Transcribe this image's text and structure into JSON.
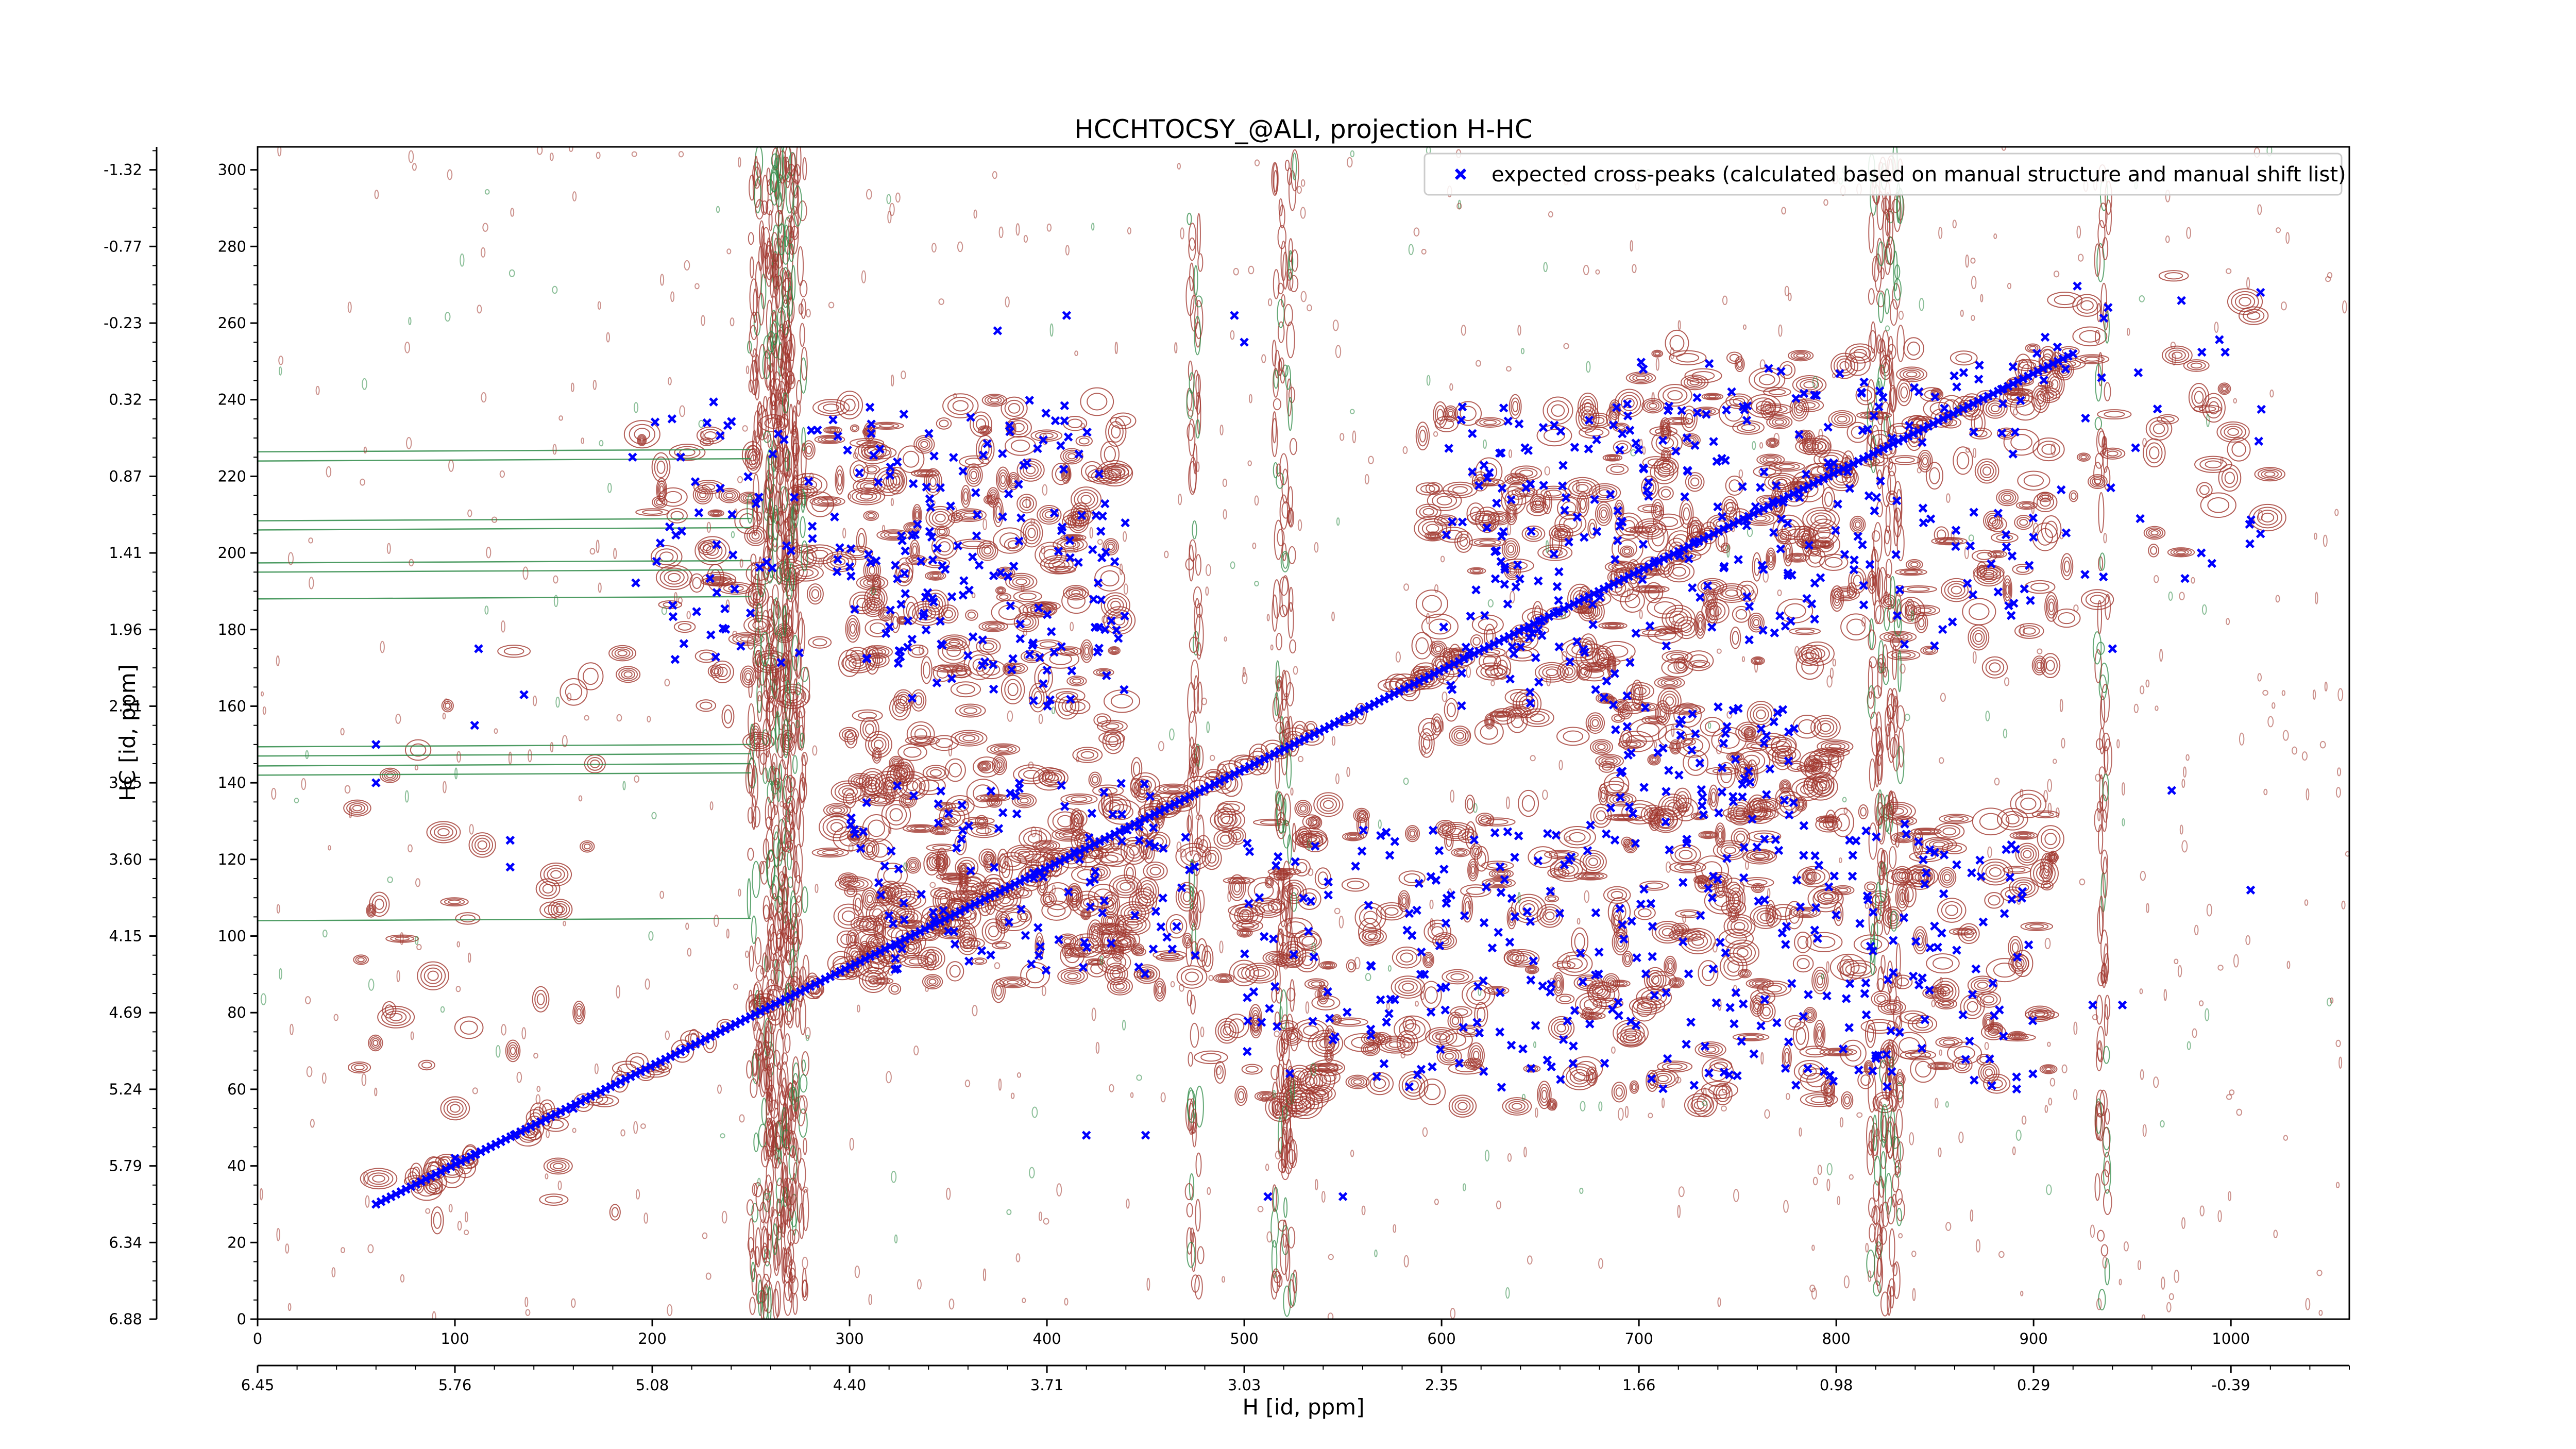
{
  "chart_data": {
    "type": "scatter",
    "title": "HCCHTOCSY_@ALI, projection H-HC",
    "xlabel": "H [id, ppm]",
    "ylabel": "HC [id, ppm]",
    "xlim": [
      0,
      1060
    ],
    "ylim": [
      0,
      306
    ],
    "x_ticks": [
      0,
      100,
      200,
      300,
      400,
      500,
      600,
      700,
      800,
      900,
      1000
    ],
    "y_ticks": [
      0,
      20,
      40,
      60,
      80,
      100,
      120,
      140,
      160,
      180,
      200,
      220,
      240,
      260,
      280,
      300
    ],
    "x_ppm_ticks": [
      "6.45",
      "5.76",
      "5.08",
      "4.40",
      "3.71",
      "3.03",
      "2.35",
      "1.66",
      "0.98",
      "0.29",
      "-0.39"
    ],
    "y_ppm_ticks": [
      "6.88",
      "6.34",
      "5.79",
      "5.24",
      "4.69",
      "4.15",
      "3.60",
      "3.05",
      "2.51",
      "1.96",
      "1.41",
      "0.87",
      "0.32",
      "-0.23",
      "-0.77",
      "-1.32"
    ],
    "grid": false,
    "legend_position": "top-right",
    "series": [
      {
        "name": "expected cross-peaks (calculated based on manual structure and manual shift list)",
        "color": "#0000ff",
        "marker": "x",
        "diagonal": {
          "x_from": 60,
          "x_to": 920,
          "y_from": 30,
          "y_to": 252
        },
        "clusters": [
          {
            "x": [
              300,
              440
            ],
            "y": [
              160,
              240
            ],
            "n": 170
          },
          {
            "x": [
              190,
              300
            ],
            "y": [
              170,
              240
            ],
            "n": 60
          },
          {
            "x": [
              600,
              700
            ],
            "y": [
              160,
              240
            ],
            "n": 120
          },
          {
            "x": [
              700,
              900
            ],
            "y": [
              175,
              250
            ],
            "n": 170
          },
          {
            "x": [
              500,
              900
            ],
            "y": [
              60,
              130
            ],
            "n": 320
          },
          {
            "x": [
              300,
              480
            ],
            "y": [
              90,
              140
            ],
            "n": 110
          },
          {
            "x": [
              680,
              780
            ],
            "y": [
              130,
              160
            ],
            "n": 60
          },
          {
            "x": [
              900,
              1020
            ],
            "y": [
              180,
              270
            ],
            "n": 30
          }
        ],
        "points": [
          {
            "x": 60,
            "y": 30
          },
          {
            "x": 100,
            "y": 42
          },
          {
            "x": 110,
            "y": 43
          },
          {
            "x": 130,
            "y": 48
          },
          {
            "x": 160,
            "y": 55
          },
          {
            "x": 60,
            "y": 140
          },
          {
            "x": 60,
            "y": 150
          },
          {
            "x": 110,
            "y": 155
          },
          {
            "x": 112,
            "y": 175
          },
          {
            "x": 135,
            "y": 163
          },
          {
            "x": 128,
            "y": 125
          },
          {
            "x": 128,
            "y": 118
          },
          {
            "x": 190,
            "y": 225
          },
          {
            "x": 210,
            "y": 235
          },
          {
            "x": 375,
            "y": 258
          },
          {
            "x": 410,
            "y": 262
          },
          {
            "x": 495,
            "y": 262
          },
          {
            "x": 500,
            "y": 255
          },
          {
            "x": 420,
            "y": 48
          },
          {
            "x": 450,
            "y": 48
          },
          {
            "x": 512,
            "y": 32
          },
          {
            "x": 550,
            "y": 32
          },
          {
            "x": 930,
            "y": 82
          },
          {
            "x": 945,
            "y": 82
          },
          {
            "x": 970,
            "y": 138
          },
          {
            "x": 1010,
            "y": 112
          },
          {
            "x": 1015,
            "y": 268
          },
          {
            "x": 1015,
            "y": 205
          },
          {
            "x": 985,
            "y": 200
          },
          {
            "x": 940,
            "y": 175
          }
        ]
      }
    ],
    "contours": [
      {
        "name": "positive",
        "color": "#a0362d"
      },
      {
        "name": "negative",
        "color": "#2d8a46"
      }
    ]
  }
}
